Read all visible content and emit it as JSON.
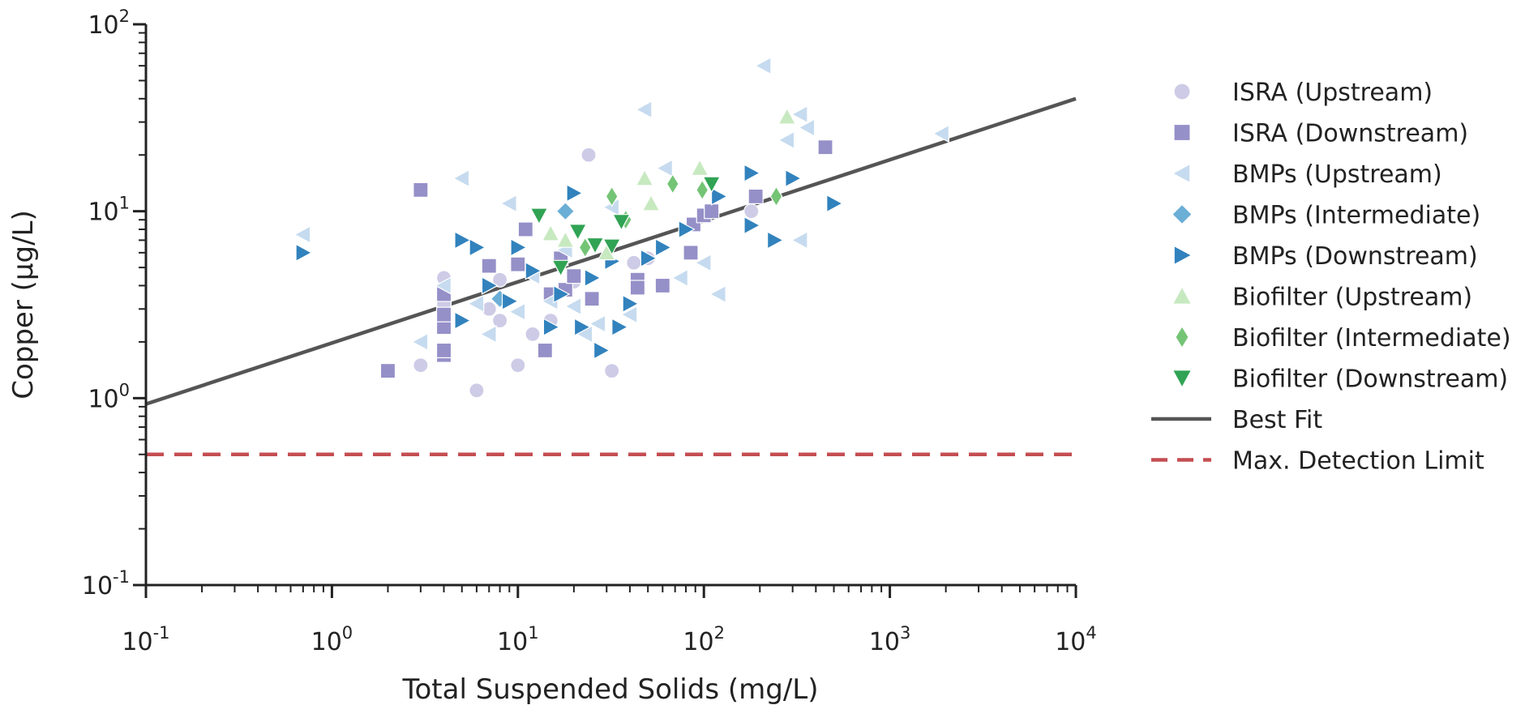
{
  "chart_data": {
    "type": "scatter",
    "xlabel": "Total Suspended Solids (mg/L)",
    "ylabel": "Copper (µg/L)",
    "xscale": "log",
    "yscale": "log",
    "xlim": [
      0.1,
      10000
    ],
    "ylim": [
      0.1,
      100
    ],
    "x_ticks": [
      {
        "value": 0.1,
        "base": "10",
        "exp": "-1"
      },
      {
        "value": 1,
        "base": "10",
        "exp": "0"
      },
      {
        "value": 10,
        "base": "10",
        "exp": "1"
      },
      {
        "value": 100,
        "base": "10",
        "exp": "2"
      },
      {
        "value": 1000,
        "base": "10",
        "exp": "3"
      },
      {
        "value": 10000,
        "base": "10",
        "exp": "4"
      }
    ],
    "y_ticks": [
      {
        "value": 0.1,
        "base": "10",
        "exp": "-1"
      },
      {
        "value": 1,
        "base": "10",
        "exp": "0"
      },
      {
        "value": 10,
        "base": "10",
        "exp": "1"
      },
      {
        "value": 100,
        "base": "10",
        "exp": "2"
      }
    ],
    "grid": false,
    "legend_position": "right",
    "series": [
      {
        "name": "ISRA (Upstream)",
        "marker": "circle",
        "color": "#cdcbe6",
        "points": [
          [
            3,
            1.5
          ],
          [
            4,
            4.4
          ],
          [
            4,
            3.2
          ],
          [
            6,
            1.1
          ],
          [
            7,
            3.0
          ],
          [
            8,
            2.6
          ],
          [
            8,
            4.3
          ],
          [
            10,
            1.5
          ],
          [
            12,
            2.2
          ],
          [
            15,
            2.6
          ],
          [
            20,
            4.2
          ],
          [
            24,
            20
          ],
          [
            32,
            1.4
          ],
          [
            42,
            5.3
          ],
          [
            50,
            5.6
          ],
          [
            180,
            10
          ]
        ]
      },
      {
        "name": "ISRA (Downstream)",
        "marker": "square",
        "color": "#9590c8",
        "points": [
          [
            2,
            1.4
          ],
          [
            3,
            13
          ],
          [
            4,
            1.7
          ],
          [
            4,
            1.8
          ],
          [
            4,
            3.6
          ],
          [
            4,
            2.4
          ],
          [
            4,
            2.8
          ],
          [
            7,
            5.1
          ],
          [
            10,
            5.2
          ],
          [
            11,
            8.0
          ],
          [
            14,
            1.8
          ],
          [
            15,
            3.6
          ],
          [
            17,
            5.6
          ],
          [
            18,
            3.8
          ],
          [
            20,
            4.5
          ],
          [
            25,
            3.4
          ],
          [
            44,
            4.3
          ],
          [
            44,
            3.9
          ],
          [
            60,
            4.0
          ],
          [
            85,
            6.0
          ],
          [
            88,
            8.5
          ],
          [
            100,
            9.5
          ],
          [
            110,
            10
          ],
          [
            190,
            12
          ],
          [
            450,
            22
          ]
        ]
      },
      {
        "name": "BMPs (Upstream)",
        "marker": "triangle-left",
        "color": "#c6dbef",
        "points": [
          [
            0.7,
            7.5
          ],
          [
            3,
            2.0
          ],
          [
            4,
            4.0
          ],
          [
            5,
            15
          ],
          [
            6,
            3.2
          ],
          [
            7,
            2.2
          ],
          [
            9,
            11
          ],
          [
            10,
            2.9
          ],
          [
            12,
            4.5
          ],
          [
            15,
            3.3
          ],
          [
            18,
            6.2
          ],
          [
            20,
            3.1
          ],
          [
            23,
            2.2
          ],
          [
            27,
            2.5
          ],
          [
            32,
            10.5
          ],
          [
            40,
            2.8
          ],
          [
            48,
            35
          ],
          [
            62,
            17
          ],
          [
            75,
            4.4
          ],
          [
            100,
            5.3
          ],
          [
            120,
            3.6
          ],
          [
            210,
            60
          ],
          [
            280,
            24
          ],
          [
            330,
            33
          ],
          [
            360,
            28
          ],
          [
            330,
            7.0
          ],
          [
            1900,
            26
          ]
        ]
      },
      {
        "name": "BMPs (Intermediate)",
        "marker": "diamond",
        "color": "#6baed6",
        "points": [
          [
            8,
            3.4
          ],
          [
            18,
            10
          ]
        ]
      },
      {
        "name": "BMPs (Downstream)",
        "marker": "triangle-right",
        "color": "#3182bd",
        "points": [
          [
            0.7,
            6.0
          ],
          [
            5,
            7.0
          ],
          [
            5,
            2.6
          ],
          [
            6,
            6.4
          ],
          [
            7,
            4.0
          ],
          [
            9,
            3.3
          ],
          [
            10,
            6.4
          ],
          [
            12,
            4.8
          ],
          [
            15,
            2.4
          ],
          [
            17,
            3.6
          ],
          [
            20,
            12.5
          ],
          [
            22,
            2.4
          ],
          [
            25,
            4.4
          ],
          [
            28,
            1.8
          ],
          [
            32,
            5.4
          ],
          [
            35,
            2.4
          ],
          [
            40,
            3.2
          ],
          [
            50,
            5.6
          ],
          [
            60,
            6.4
          ],
          [
            80,
            8.0
          ],
          [
            120,
            12
          ],
          [
            180,
            16
          ],
          [
            180,
            8.4
          ],
          [
            240,
            7.0
          ],
          [
            300,
            15
          ],
          [
            500,
            11
          ]
        ]
      },
      {
        "name": "Biofilter (Upstream)",
        "marker": "triangle-up",
        "color": "#c7e9c0",
        "points": [
          [
            15,
            7.6
          ],
          [
            18,
            7.0
          ],
          [
            30,
            6.0
          ],
          [
            48,
            15
          ],
          [
            52,
            11
          ],
          [
            95,
            17
          ],
          [
            280,
            32
          ]
        ]
      },
      {
        "name": "Biofilter (Intermediate)",
        "marker": "diamond-thin",
        "color": "#74c476",
        "points": [
          [
            23,
            6.4
          ],
          [
            32,
            12
          ],
          [
            38,
            9.0
          ],
          [
            68,
            14
          ],
          [
            98,
            13
          ],
          [
            245,
            12
          ]
        ]
      },
      {
        "name": "Biofilter (Downstream)",
        "marker": "triangle-down",
        "color": "#31a354",
        "points": [
          [
            13,
            9.5
          ],
          [
            17,
            5.0
          ],
          [
            21,
            7.8
          ],
          [
            26,
            6.6
          ],
          [
            32,
            6.5
          ],
          [
            36,
            8.8
          ],
          [
            110,
            14
          ]
        ]
      }
    ],
    "lines": [
      {
        "name": "Best Fit",
        "style": "solid",
        "color": "#555555",
        "x": [
          0.1,
          10000
        ],
        "y": [
          0.93,
          40
        ]
      },
      {
        "name": "Max. Detection Limit",
        "style": "dashed",
        "color": "#c44e52",
        "x": [
          0.1,
          10000
        ],
        "y": [
          0.5,
          0.5
        ]
      }
    ]
  }
}
